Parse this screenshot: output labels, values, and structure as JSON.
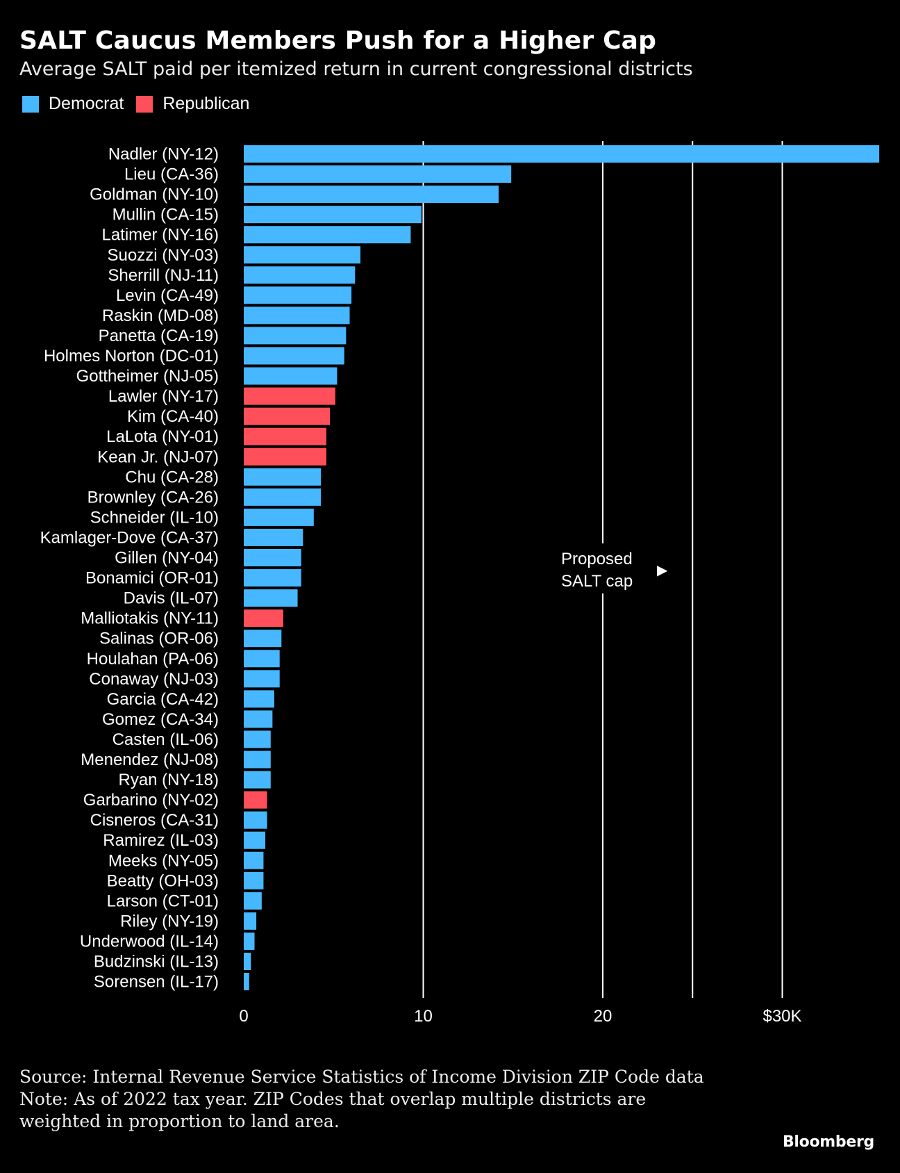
{
  "title": "SALT Caucus Members Push for a Higher Cap",
  "subtitle": "Average SALT paid per itemized return in current congressional districts",
  "legend": [
    {
      "label": "Democrat",
      "color": "#47b7ff"
    },
    {
      "label": "Republican",
      "color": "#ff4f5a"
    }
  ],
  "annotation": {
    "line1": "Proposed",
    "line2": "SALT cap",
    "marker": "▶"
  },
  "footer": {
    "source": "Source: Internal Revenue Service Statistics of Income Division ZIP Code data",
    "note": "Note: As of 2022 tax year. ZIP Codes that overlap multiple districts are weighted in proportion to land area."
  },
  "brand": "Bloomberg",
  "chart_data": {
    "type": "bar",
    "orientation": "horizontal",
    "xlim": [
      0,
      35.4
    ],
    "x_ticks": [
      {
        "value": 0,
        "label": "0"
      },
      {
        "value": 10,
        "label": "10"
      },
      {
        "value": 20,
        "label": "20"
      },
      {
        "value": 30,
        "label": "$30K"
      }
    ],
    "cap_value": 25,
    "grid": true,
    "legend_position": "top-left",
    "colors": {
      "Democrat": "#47b7ff",
      "Republican": "#ff4f5a"
    },
    "bars": [
      {
        "label": "Nadler (NY-12)",
        "value": 35.4,
        "party": "Democrat"
      },
      {
        "label": "Lieu (CA-36)",
        "value": 14.9,
        "party": "Democrat"
      },
      {
        "label": "Goldman (NY-10)",
        "value": 14.2,
        "party": "Democrat"
      },
      {
        "label": "Mullin (CA-15)",
        "value": 9.9,
        "party": "Democrat"
      },
      {
        "label": "Latimer (NY-16)",
        "value": 9.3,
        "party": "Democrat"
      },
      {
        "label": "Suozzi (NY-03)",
        "value": 6.5,
        "party": "Democrat"
      },
      {
        "label": "Sherrill (NJ-11)",
        "value": 6.2,
        "party": "Democrat"
      },
      {
        "label": "Levin (CA-49)",
        "value": 6.0,
        "party": "Democrat"
      },
      {
        "label": "Raskin (MD-08)",
        "value": 5.9,
        "party": "Democrat"
      },
      {
        "label": "Panetta (CA-19)",
        "value": 5.7,
        "party": "Democrat"
      },
      {
        "label": "Holmes Norton (DC-01)",
        "value": 5.6,
        "party": "Democrat"
      },
      {
        "label": "Gottheimer (NJ-05)",
        "value": 5.2,
        "party": "Democrat"
      },
      {
        "label": "Lawler (NY-17)",
        "value": 5.1,
        "party": "Republican"
      },
      {
        "label": "Kim (CA-40)",
        "value": 4.8,
        "party": "Republican"
      },
      {
        "label": "LaLota (NY-01)",
        "value": 4.6,
        "party": "Republican"
      },
      {
        "label": "Kean Jr. (NJ-07)",
        "value": 4.6,
        "party": "Republican"
      },
      {
        "label": "Chu (CA-28)",
        "value": 4.3,
        "party": "Democrat"
      },
      {
        "label": "Brownley (CA-26)",
        "value": 4.3,
        "party": "Democrat"
      },
      {
        "label": "Schneider (IL-10)",
        "value": 3.9,
        "party": "Democrat"
      },
      {
        "label": "Kamlager-Dove (CA-37)",
        "value": 3.3,
        "party": "Democrat"
      },
      {
        "label": "Gillen (NY-04)",
        "value": 3.2,
        "party": "Democrat"
      },
      {
        "label": "Bonamici (OR-01)",
        "value": 3.2,
        "party": "Democrat"
      },
      {
        "label": "Davis (IL-07)",
        "value": 3.0,
        "party": "Democrat"
      },
      {
        "label": "Malliotakis (NY-11)",
        "value": 2.2,
        "party": "Republican"
      },
      {
        "label": "Salinas (OR-06)",
        "value": 2.1,
        "party": "Democrat"
      },
      {
        "label": "Houlahan (PA-06)",
        "value": 2.0,
        "party": "Democrat"
      },
      {
        "label": "Conaway (NJ-03)",
        "value": 2.0,
        "party": "Democrat"
      },
      {
        "label": "Garcia (CA-42)",
        "value": 1.7,
        "party": "Democrat"
      },
      {
        "label": "Gomez (CA-34)",
        "value": 1.6,
        "party": "Democrat"
      },
      {
        "label": "Casten (IL-06)",
        "value": 1.5,
        "party": "Democrat"
      },
      {
        "label": "Menendez (NJ-08)",
        "value": 1.5,
        "party": "Democrat"
      },
      {
        "label": "Ryan (NY-18)",
        "value": 1.5,
        "party": "Democrat"
      },
      {
        "label": "Garbarino (NY-02)",
        "value": 1.3,
        "party": "Republican"
      },
      {
        "label": "Cisneros (CA-31)",
        "value": 1.3,
        "party": "Democrat"
      },
      {
        "label": "Ramirez (IL-03)",
        "value": 1.2,
        "party": "Democrat"
      },
      {
        "label": "Meeks (NY-05)",
        "value": 1.1,
        "party": "Democrat"
      },
      {
        "label": "Beatty (OH-03)",
        "value": 1.1,
        "party": "Democrat"
      },
      {
        "label": "Larson (CT-01)",
        "value": 1.0,
        "party": "Democrat"
      },
      {
        "label": "Riley (NY-19)",
        "value": 0.7,
        "party": "Democrat"
      },
      {
        "label": "Underwood (IL-14)",
        "value": 0.6,
        "party": "Democrat"
      },
      {
        "label": "Budzinski (IL-13)",
        "value": 0.4,
        "party": "Democrat"
      },
      {
        "label": "Sorensen (IL-17)",
        "value": 0.3,
        "party": "Democrat"
      }
    ]
  }
}
